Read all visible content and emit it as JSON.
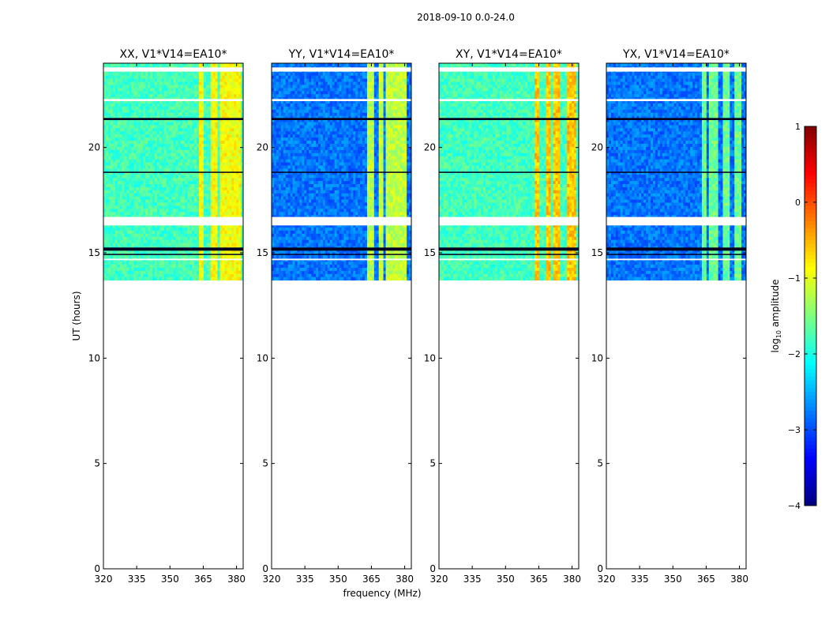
{
  "figure_title": "2018-09-10 0.0-24.0",
  "chart_data": {
    "type": "heatmap",
    "suptitle": "2018-09-10 0.0-24.0",
    "xlabel": "frequency (MHz)",
    "ylabel": "UT (hours)",
    "xlim": [
      320,
      383
    ],
    "ylim": [
      0,
      24
    ],
    "xticks": [
      320,
      335,
      350,
      365,
      380
    ],
    "yticks": [
      0,
      5,
      10,
      15,
      20
    ],
    "data_start_hour": 13.7,
    "data_end_hour": 24.0,
    "rfi_band_mhz": [
      363,
      382
    ],
    "panels": [
      {
        "title": "XX, V1*V14=EA10*",
        "base_log_amp": -1.8,
        "rfi_log_amp": -0.9
      },
      {
        "title": "YY, V1*V14=EA10*",
        "base_log_amp": -2.8,
        "rfi_log_amp": -1.2
      },
      {
        "title": "XY, V1*V14=EA10*",
        "base_log_amp": -1.8,
        "rfi_log_amp": -0.6
      },
      {
        "title": "YX, V1*V14=EA10*",
        "base_log_amp": -2.8,
        "rfi_log_amp": -1.6
      }
    ],
    "gap_bands_hours": [
      [
        23.6,
        23.8
      ],
      [
        22.2,
        22.3
      ],
      [
        16.3,
        16.7
      ],
      [
        14.65,
        14.72
      ]
    ],
    "dark_bands_hours": [
      [
        21.3,
        21.4
      ],
      [
        18.8,
        18.85
      ],
      [
        15.1,
        15.25
      ],
      [
        14.9,
        14.95
      ]
    ],
    "colorbar": {
      "label": "log₁₀ amplitude",
      "label_base": "log",
      "label_sub": "10",
      "label_rest": " amplitude",
      "min": -4,
      "max": 1,
      "ticks": [
        1,
        0,
        -1,
        -2,
        -3,
        -4
      ],
      "tick_labels": [
        "1",
        "0",
        "−1",
        "−2",
        "−3",
        "−4"
      ],
      "colormap": "jet"
    }
  }
}
